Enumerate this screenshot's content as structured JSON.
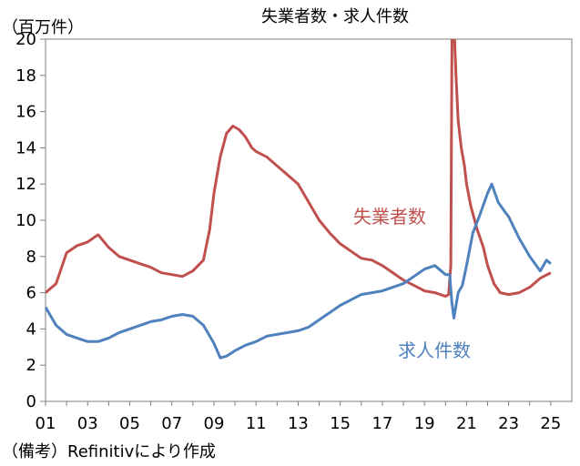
{
  "chart_data": {
    "type": "line",
    "title": "失業者数・求人件数",
    "unit": "（百万件）",
    "ylim": [
      0,
      20
    ],
    "yticks": [
      "0",
      "2",
      "4",
      "6",
      "8",
      "10",
      "12",
      "14",
      "16",
      "18",
      "20"
    ],
    "xlim": [
      2001,
      2026
    ],
    "xticks": [
      "01",
      "03",
      "05",
      "07",
      "09",
      "11",
      "13",
      "15",
      "17",
      "19",
      "21",
      "23",
      "25"
    ],
    "note": "（備考）Refinitivにより作成",
    "grid": false,
    "series": [
      {
        "name": "失業者数",
        "color": "#c0504d",
        "x": [
          2001.0,
          2001.5,
          2002.0,
          2002.5,
          2003.0,
          2003.5,
          2004.0,
          2004.5,
          2005.0,
          2005.5,
          2006.0,
          2006.5,
          2007.0,
          2007.5,
          2008.0,
          2008.5,
          2008.8,
          2009.0,
          2009.3,
          2009.6,
          2009.9,
          2010.2,
          2010.5,
          2010.8,
          2011.0,
          2011.5,
          2012.0,
          2012.5,
          2013.0,
          2013.5,
          2014.0,
          2014.5,
          2015.0,
          2015.5,
          2016.0,
          2016.5,
          2017.0,
          2017.5,
          2018.0,
          2018.5,
          2019.0,
          2019.5,
          2020.0,
          2020.15,
          2020.25,
          2020.32,
          2020.4,
          2020.5,
          2020.6,
          2020.75,
          2020.9,
          2021.0,
          2021.2,
          2021.5,
          2021.8,
          2022.0,
          2022.3,
          2022.6,
          2023.0,
          2023.5,
          2024.0,
          2024.5,
          2025.0
        ],
        "values": [
          6.0,
          6.5,
          8.2,
          8.6,
          8.8,
          9.2,
          8.5,
          8.0,
          7.8,
          7.6,
          7.4,
          7.1,
          7.0,
          6.9,
          7.2,
          7.8,
          9.5,
          11.5,
          13.5,
          14.8,
          15.2,
          15.0,
          14.6,
          14.0,
          13.8,
          13.5,
          13.0,
          12.5,
          12.0,
          11.0,
          10.0,
          9.3,
          8.7,
          8.3,
          7.9,
          7.8,
          7.5,
          7.1,
          6.7,
          6.4,
          6.1,
          6.0,
          5.8,
          5.9,
          7.5,
          23.0,
          21.0,
          18.0,
          15.5,
          14.0,
          13.0,
          12.0,
          10.8,
          9.5,
          8.5,
          7.5,
          6.5,
          6.0,
          5.9,
          6.0,
          6.3,
          6.8,
          7.1
        ]
      },
      {
        "name": "求人件数",
        "color": "#4f81bd",
        "x": [
          2001.0,
          2001.5,
          2002.0,
          2002.5,
          2003.0,
          2003.5,
          2004.0,
          2004.5,
          2005.0,
          2005.5,
          2006.0,
          2006.5,
          2007.0,
          2007.5,
          2008.0,
          2008.5,
          2009.0,
          2009.3,
          2009.6,
          2010.0,
          2010.5,
          2011.0,
          2011.5,
          2012.0,
          2012.5,
          2013.0,
          2013.5,
          2014.0,
          2014.5,
          2015.0,
          2015.5,
          2016.0,
          2016.5,
          2017.0,
          2017.5,
          2018.0,
          2018.5,
          2019.0,
          2019.5,
          2020.0,
          2020.2,
          2020.3,
          2020.4,
          2020.6,
          2020.8,
          2021.0,
          2021.3,
          2021.6,
          2022.0,
          2022.2,
          2022.5,
          2022.8,
          2023.0,
          2023.5,
          2024.0,
          2024.5,
          2024.8,
          2025.0
        ],
        "values": [
          5.2,
          4.2,
          3.7,
          3.5,
          3.3,
          3.3,
          3.5,
          3.8,
          4.0,
          4.2,
          4.4,
          4.5,
          4.7,
          4.8,
          4.7,
          4.2,
          3.2,
          2.4,
          2.5,
          2.8,
          3.1,
          3.3,
          3.6,
          3.7,
          3.8,
          3.9,
          4.1,
          4.5,
          4.9,
          5.3,
          5.6,
          5.9,
          6.0,
          6.1,
          6.3,
          6.5,
          6.9,
          7.3,
          7.5,
          7.0,
          7.0,
          5.5,
          4.6,
          6.0,
          6.4,
          7.5,
          9.3,
          10.2,
          11.5,
          12.0,
          11.0,
          10.5,
          10.2,
          9.0,
          8.0,
          7.2,
          7.8,
          7.6
        ]
      }
    ]
  }
}
